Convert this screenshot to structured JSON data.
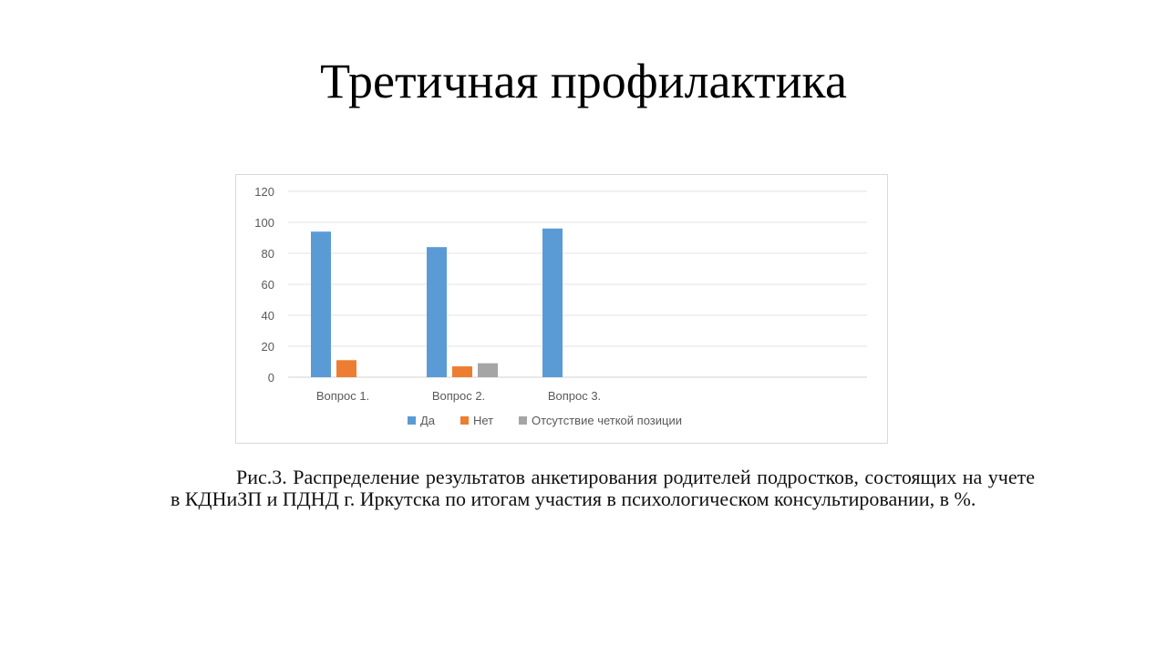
{
  "slide": {
    "title": "Третичная профилактика",
    "caption": "Рис.3. Распределение результатов анкетирования родителей подростков, состоящих на учете в КДНиЗП  и ПДНД г. Иркутска по итогам участия в психологическом консультировании, в %."
  },
  "chart_data": {
    "type": "bar",
    "title": "",
    "xlabel": "",
    "ylabel": "",
    "categories": [
      "Вопрос 1.",
      "Вопрос 2.",
      "Вопрос 3."
    ],
    "series": [
      {
        "name": "Да",
        "values": [
          94,
          84,
          96
        ],
        "color": "#5b9bd5"
      },
      {
        "name": "Нет",
        "values": [
          11,
          7,
          0
        ],
        "color": "#ed7d31"
      },
      {
        "name": "Отсутствие четкой позиции",
        "values": [
          0,
          9,
          0
        ],
        "color": "#a5a5a5"
      }
    ],
    "ylim": [
      0,
      120
    ],
    "yticks": [
      0,
      20,
      40,
      60,
      80,
      100,
      120
    ],
    "grid": true,
    "legend": "bottom"
  }
}
